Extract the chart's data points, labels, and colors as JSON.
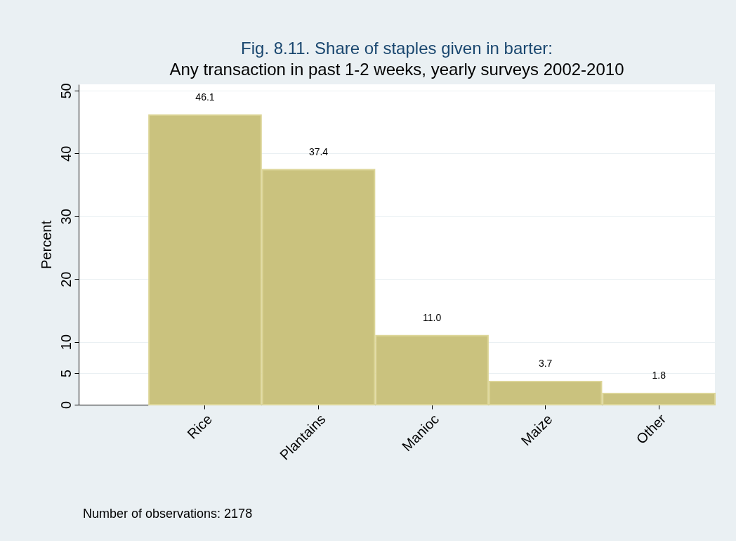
{
  "chart_data": {
    "type": "bar",
    "title": "Fig. 8.11. Share of staples given in barter:",
    "subtitle": "Any transaction in past 1-2 weeks, yearly surveys 2002-2010",
    "ylabel": "Percent",
    "categories": [
      "Rice",
      "Plantains",
      "Manioc",
      "Maize",
      "Other"
    ],
    "values": [
      46.1,
      37.4,
      11.0,
      3.7,
      1.8
    ],
    "value_labels": [
      "46.1",
      "37.4",
      "11.0",
      "3.7",
      "1.8"
    ],
    "color": "#cac27e",
    "ylim": [
      0,
      51
    ],
    "yticks": [
      0,
      5,
      10,
      20,
      30,
      40,
      50
    ],
    "grid": "y",
    "annotations": [
      "Number of observations: 2178"
    ]
  }
}
